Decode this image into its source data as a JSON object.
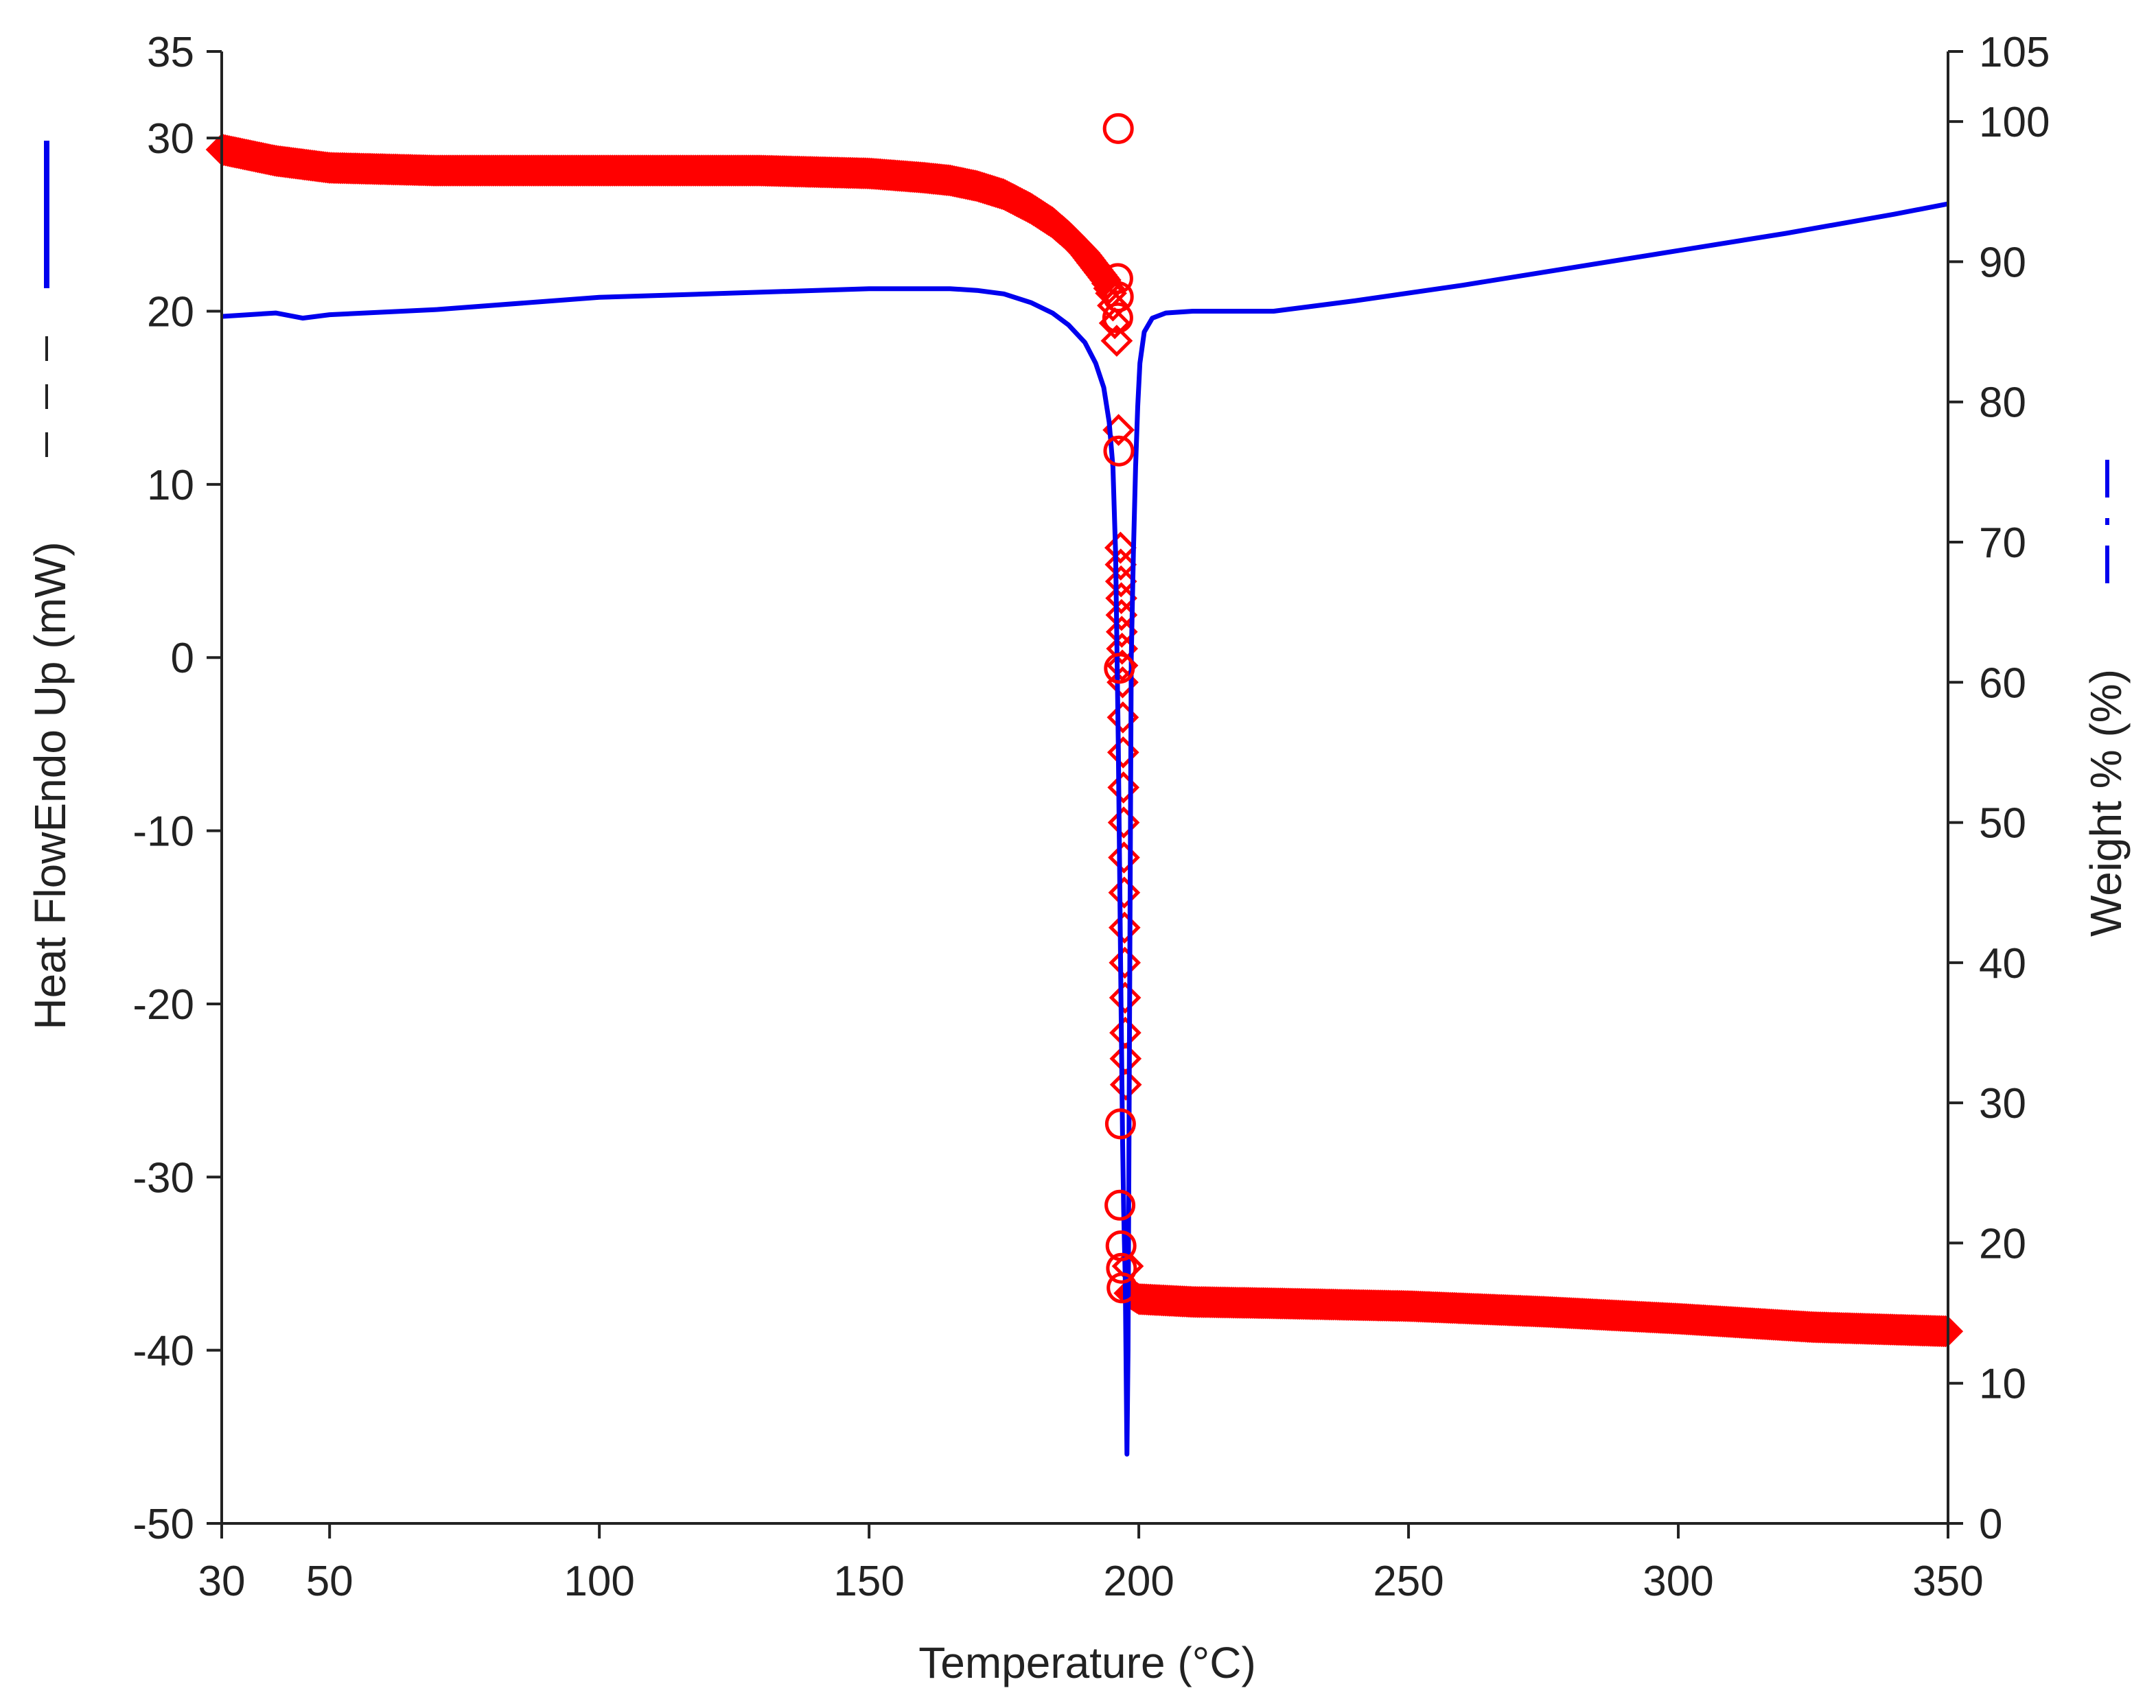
{
  "chart_data": {
    "type": "line",
    "xlabel": "Temperature (°C)",
    "ylabel_left": "Heat FlowEndo Up (mW)",
    "ylabel_right": "Weight % (%)",
    "xlim": [
      30,
      350
    ],
    "ylim_left": [
      -50,
      35
    ],
    "ylim_right": [
      0,
      105
    ],
    "x_ticks": [
      "30",
      "50",
      "100",
      "150",
      "200",
      "250",
      "300",
      "350"
    ],
    "y_left_ticks": [
      "35",
      "30",
      "20",
      "10",
      "0",
      "-10",
      "-20",
      "-30",
      "-40",
      "-50"
    ],
    "y_right_ticks": [
      "105",
      "100",
      "90",
      "80",
      "70",
      "60",
      "50",
      "40",
      "30",
      "20",
      "10",
      "0"
    ],
    "grid": false,
    "colors": {
      "heat_flow": "#0000ee",
      "weight": "#ff0000",
      "axis": "#222222"
    },
    "legend_glyphs": {
      "left": "solid",
      "right": "dash-dot"
    },
    "series": [
      {
        "axis": "left",
        "style": "line",
        "color": "#0000ee",
        "x": [
          30,
          40,
          45,
          50,
          70,
          100,
          130,
          150,
          160,
          165,
          170,
          175,
          180,
          184,
          187,
          190,
          192,
          193.5,
          194.5,
          195.2,
          195.7,
          196.2,
          196.7,
          197,
          197.2,
          197.5,
          197.8,
          198,
          198.3,
          198.6,
          199,
          199.4,
          199.8,
          200.2,
          201,
          202.5,
          205,
          210,
          225,
          240,
          260,
          280,
          300,
          320,
          340,
          350
        ],
        "y": [
          19.7,
          19.9,
          19.6,
          19.8,
          20.1,
          20.8,
          21.1,
          21.3,
          21.3,
          21.3,
          21.2,
          21.0,
          20.5,
          19.9,
          19.2,
          18.2,
          17.0,
          15.6,
          13.6,
          11.0,
          6.0,
          -5.0,
          -20.0,
          -28.0,
          -32.0,
          -36.0,
          -46.0,
          -40.0,
          -20.0,
          0.0,
          6.0,
          11.0,
          14.5,
          17.0,
          18.8,
          19.6,
          19.9,
          20.0,
          20.0,
          20.6,
          21.5,
          22.5,
          23.5,
          24.5,
          25.6,
          26.2
        ]
      },
      {
        "axis": "right",
        "style": "dense-markers",
        "color": "#ff0000",
        "x": [
          30,
          40,
          50,
          70,
          100,
          130,
          150,
          160,
          165,
          170,
          175,
          180,
          184,
          187,
          190,
          192,
          194,
          195,
          196,
          197,
          197.5,
          198,
          200,
          210,
          225,
          250,
          275,
          300,
          325,
          350
        ],
        "y": [
          98.0,
          97.2,
          96.7,
          96.5,
          96.5,
          96.5,
          96.3,
          96.0,
          95.8,
          95.4,
          94.8,
          93.8,
          92.8,
          91.8,
          90.6,
          89.6,
          88.6,
          87.6,
          84.0,
          60.0,
          35.0,
          16.5,
          16.0,
          15.8,
          15.7,
          15.5,
          15.1,
          14.6,
          14.0,
          13.7
        ]
      },
      {
        "axis": "right",
        "style": "open-markers",
        "color": "#ff0000",
        "x": [
          196.2,
          196.1,
          196.2,
          196.1,
          196.3,
          196.4,
          196.6,
          196.5,
          196.7,
          196.8,
          196.9
        ],
        "y": [
          99.5,
          88.8,
          87.5,
          86.0,
          76.5,
          61.0,
          28.5,
          22.7,
          19.8,
          18.2,
          16.8
        ]
      }
    ]
  }
}
